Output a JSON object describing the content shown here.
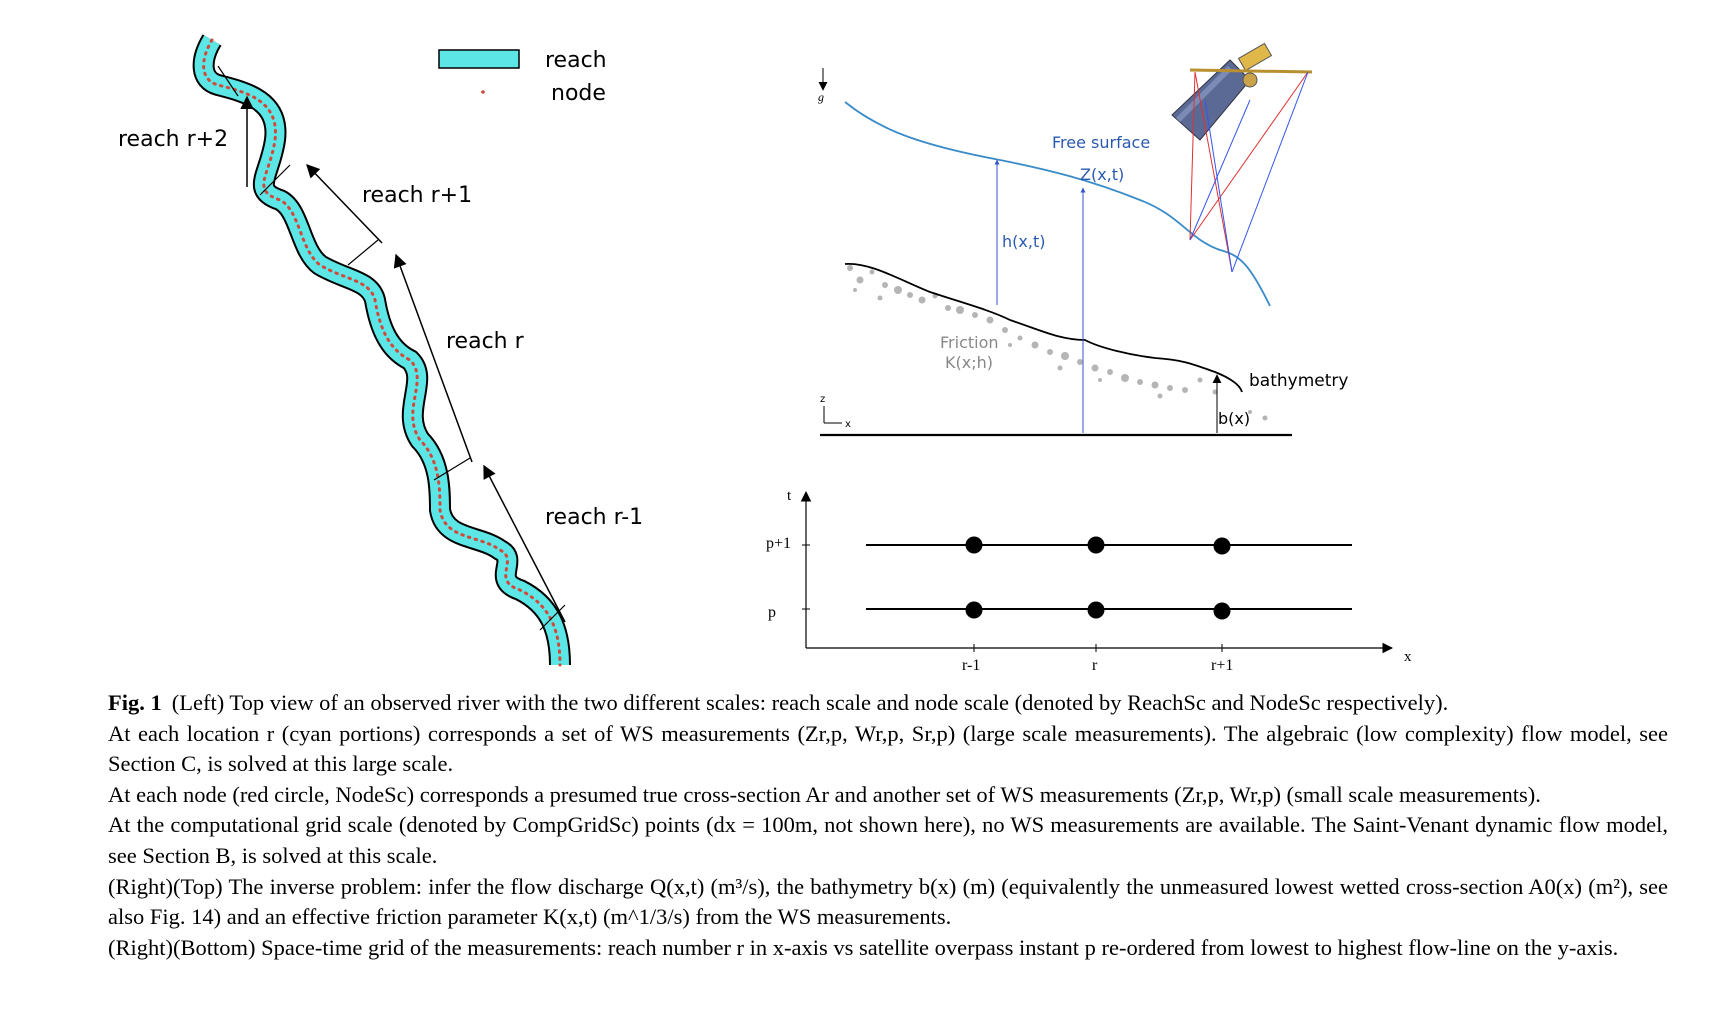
{
  "left_panel": {
    "legend": {
      "reach": "reach",
      "node": "node"
    },
    "reach_labels": [
      "reach r+2",
      "reach r+1",
      "reach r",
      "reach r-1"
    ],
    "colors": {
      "reach_fill": "#5ce6e6",
      "node_dot": "#d04a3a",
      "outline": "#000000"
    }
  },
  "top_right_panel": {
    "gravity_label": "g",
    "free_surface_label": "Free surface",
    "z_label": "Z(x,t)",
    "h_label": "h(x,t)",
    "friction_label_1": "Friction",
    "friction_label_2": "K(x;h)",
    "bathymetry_label": "bathymetry",
    "b_label": "b(x)",
    "axis_z": "z",
    "axis_x": "x",
    "colors": {
      "surface_line": "#3a8cc8",
      "measure_line": "#3355cc",
      "scatter": "#b0b0b0"
    }
  },
  "bottom_right_panel": {
    "t_axis": "t",
    "x_axis": "x",
    "y_ticks": [
      "p+1",
      "p"
    ],
    "x_ticks": [
      "r-1",
      "r",
      "r+1"
    ]
  },
  "caption": {
    "fig_label": "Fig. 1",
    "lines": [
      "(Left) Top view of an observed river with the two different scales: reach scale and node scale (denoted by ReachSc and NodeSc respectively).",
      "At each location r (cyan portions) corresponds a set of WS measurements (Zr,p, Wr,p, Sr,p) (large scale measurements). The algebraic (low complexity) flow model, see Section C, is solved at this large scale.",
      "At each node (red circle, NodeSc) corresponds a presumed true cross-section Ar and another set of WS measurements (Zr,p, Wr,p) (small scale measurements).",
      "At the computational grid scale (denoted by CompGridSc) points (dx = 100m, not shown here), no WS measurements are available. The Saint-Venant dynamic flow model, see Section B, is solved at this scale.",
      "(Right)(Top) The inverse problem: infer the flow discharge Q(x,t) (m³/s), the bathymetry b(x) (m) (equivalently the unmeasured lowest wetted cross-section A0(x) (m²), see also Fig. 14) and an effective friction parameter K(x,t) (m^1/3/s) from the WS measurements.",
      "(Right)(Bottom) Space-time grid of the measurements: reach number r in x-axis vs satellite overpass instant p re-ordered from lowest to highest flow-line on the y-axis."
    ]
  }
}
